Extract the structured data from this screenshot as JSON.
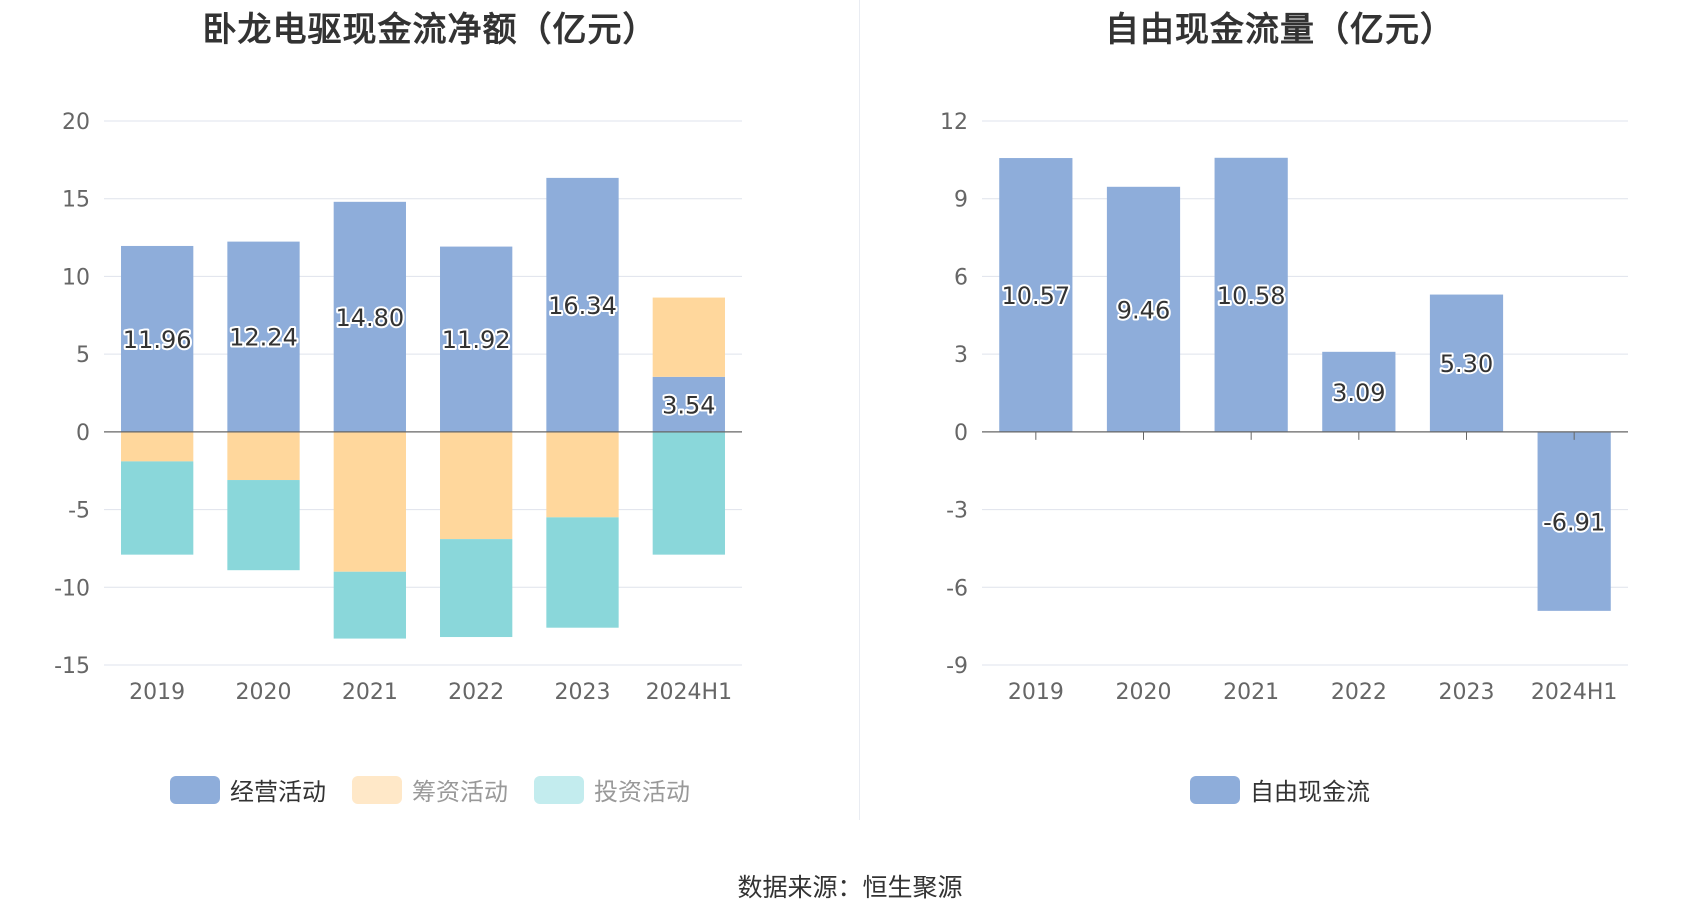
{
  "footer": {
    "source": "数据来源：恒生聚源"
  },
  "colors": {
    "operating": "#8eadda",
    "financing": "#ffd79c",
    "investing": "#8ad7da",
    "fcf": "#8eadda",
    "investing_legend": "#c3ecee",
    "financing_legend": "#ffe8c8"
  },
  "chart_data": [
    {
      "type": "bar",
      "stacked": true,
      "title": "卧龙电驱现金流净额（亿元）",
      "categories": [
        "2019",
        "2020",
        "2021",
        "2022",
        "2023",
        "2024H1"
      ],
      "ylim": [
        -15,
        20
      ],
      "yticks": [
        -15,
        -10,
        -5,
        0,
        5,
        10,
        15,
        20
      ],
      "grid": true,
      "legend_position": "bottom",
      "series": [
        {
          "name": "经营活动",
          "values": [
            11.96,
            12.24,
            14.8,
            11.92,
            16.34,
            3.54
          ],
          "labels": [
            "11.96",
            "12.24",
            "14.80",
            "11.92",
            "16.34",
            "3.54"
          ]
        },
        {
          "name": "筹资活动",
          "values": [
            -1.9,
            -3.1,
            -9.0,
            -6.9,
            -5.5,
            5.1
          ]
        },
        {
          "name": "投资活动",
          "values": [
            -6.0,
            -5.8,
            -4.3,
            -6.3,
            -7.1,
            -7.9
          ]
        }
      ]
    },
    {
      "type": "bar",
      "title": "自由现金流量（亿元）",
      "categories": [
        "2019",
        "2020",
        "2021",
        "2022",
        "2023",
        "2024H1"
      ],
      "ylim": [
        -9,
        12
      ],
      "yticks": [
        -9,
        -6,
        -3,
        0,
        3,
        6,
        9,
        12
      ],
      "grid": true,
      "legend_position": "bottom",
      "series": [
        {
          "name": "自由现金流",
          "values": [
            10.57,
            9.46,
            10.58,
            3.09,
            5.3,
            -6.91
          ],
          "labels": [
            "10.57",
            "9.46",
            "10.58",
            "3.09",
            "5.30",
            "-6.91"
          ]
        }
      ]
    }
  ]
}
